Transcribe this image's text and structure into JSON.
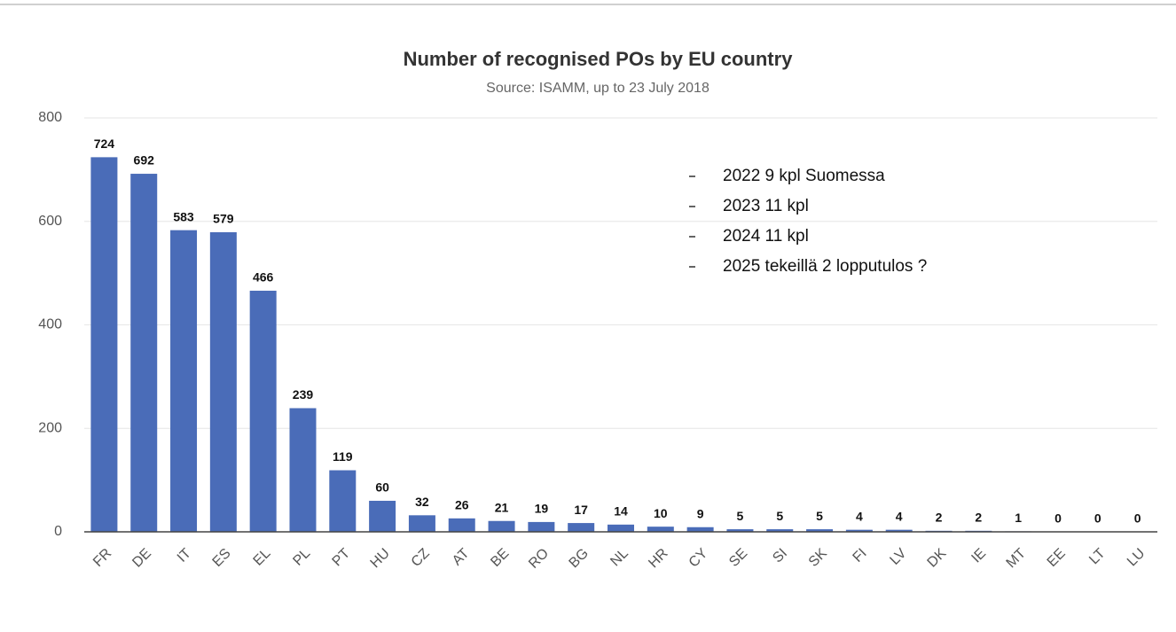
{
  "chart_data": {
    "type": "bar",
    "title": "Number of recognised POs by EU country",
    "subtitle": "Source: ISAMM, up to 23 July 2018",
    "annotations": [
      "2022 9 kpl Suomessa",
      "2023 11 kpl",
      "2024 11 kpl",
      "2025 tekeillä 2 lopputulos ?"
    ],
    "categories": [
      "FR",
      "DE",
      "IT",
      "ES",
      "EL",
      "PL",
      "PT",
      "HU",
      "CZ",
      "AT",
      "BE",
      "RO",
      "BG",
      "NL",
      "HR",
      "CY",
      "SE",
      "SI",
      "SK",
      "FI",
      "LV",
      "DK",
      "IE",
      "MT",
      "EE",
      "LT",
      "LU"
    ],
    "values": [
      724,
      692,
      583,
      579,
      466,
      239,
      119,
      60,
      32,
      26,
      21,
      19,
      17,
      14,
      10,
      9,
      5,
      5,
      5,
      4,
      4,
      2,
      2,
      1,
      0,
      0,
      0
    ],
    "color": "#4a6cb8",
    "ylim": [
      0,
      800
    ],
    "yticks": [
      0,
      200,
      400,
      600,
      800
    ],
    "grid": true
  }
}
